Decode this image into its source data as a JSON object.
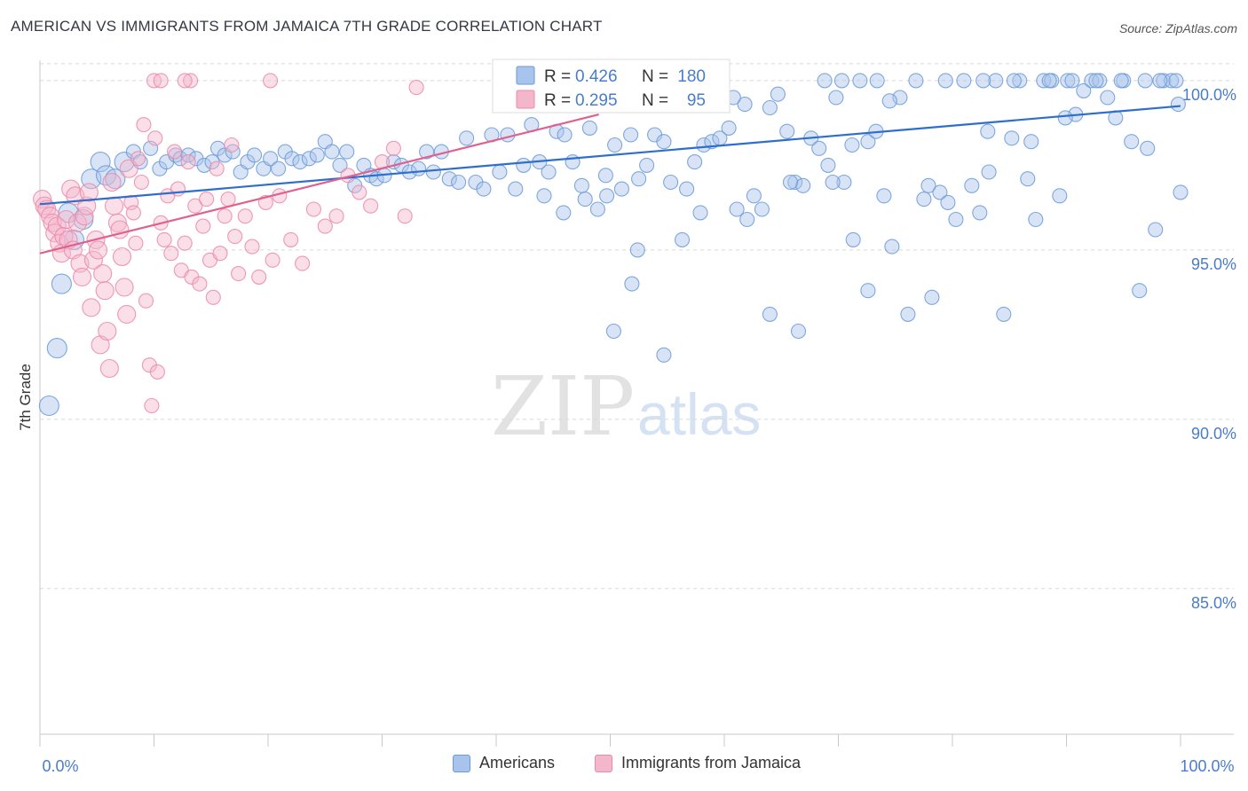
{
  "title": "AMERICAN VS IMMIGRANTS FROM JAMAICA 7TH GRADE CORRELATION CHART",
  "source": "Source: ZipAtlas.com",
  "colors": {
    "americans_fill": "#a8c4ec",
    "americans_stroke": "#6a9ad8",
    "americans_line": "#2f6fcc",
    "jamaica_fill": "#f4b6cb",
    "jamaica_stroke": "#ec88a8",
    "jamaica_line": "#e0608f",
    "axis_value_text": "#4a7ccc"
  },
  "stats_box": [
    {
      "r_label": "R =",
      "r_value": "0.426",
      "n_label": "N =",
      "n_value": "180"
    },
    {
      "r_label": "R =",
      "r_value": "0.295",
      "n_label": "N =",
      "n_value": "95"
    }
  ],
  "watermark": {
    "zip": "ZIP",
    "atlas": "atlas"
  },
  "chart_data": {
    "type": "scatter",
    "ylabel": "7th Grade",
    "xlabel": "",
    "xlim": [
      0,
      100
    ],
    "ylim": [
      80.7,
      100.6
    ],
    "x_tick_labels": [
      "0.0%",
      "100.0%"
    ],
    "y_ticks": [
      {
        "value": 100,
        "label": "100.0%"
      },
      {
        "value": 95,
        "label": "95.0%"
      },
      {
        "value": 90,
        "label": "90.0%"
      },
      {
        "value": 85,
        "label": "85.0%"
      }
    ],
    "grid": "horizontal dashed",
    "legend_position": "bottom-center",
    "series": [
      {
        "name": "Americans",
        "trend": {
          "x": [
            0,
            100
          ],
          "y": [
            96.35,
            99.25
          ]
        },
        "points": [
          [
            0.8,
            90.4
          ],
          [
            1.5,
            92.1
          ],
          [
            1.9,
            94.0
          ],
          [
            2.5,
            96.1
          ],
          [
            3.0,
            95.3
          ],
          [
            3.8,
            95.9
          ],
          [
            4.5,
            97.1
          ],
          [
            5.3,
            97.6
          ],
          [
            5.8,
            97.2
          ],
          [
            6.6,
            97.1
          ],
          [
            7.4,
            97.6
          ],
          [
            8.2,
            97.9
          ],
          [
            8.8,
            97.6
          ],
          [
            9.7,
            98.0
          ],
          [
            10.5,
            97.4
          ],
          [
            11.1,
            97.6
          ],
          [
            11.9,
            97.8
          ],
          [
            12.3,
            97.7
          ],
          [
            13.0,
            97.8
          ],
          [
            13.7,
            97.7
          ],
          [
            14.4,
            97.5
          ],
          [
            15.1,
            97.6
          ],
          [
            15.6,
            98.0
          ],
          [
            16.2,
            97.8
          ],
          [
            16.9,
            97.9
          ],
          [
            17.6,
            97.3
          ],
          [
            18.2,
            97.6
          ],
          [
            18.8,
            97.8
          ],
          [
            19.6,
            97.4
          ],
          [
            20.2,
            97.7
          ],
          [
            20.9,
            97.4
          ],
          [
            21.5,
            97.9
          ],
          [
            22.1,
            97.7
          ],
          [
            22.8,
            97.6
          ],
          [
            23.6,
            97.7
          ],
          [
            24.3,
            97.8
          ],
          [
            25.0,
            98.2
          ],
          [
            25.6,
            97.9
          ],
          [
            26.3,
            97.5
          ],
          [
            26.9,
            97.9
          ],
          [
            27.6,
            96.9
          ],
          [
            28.4,
            97.5
          ],
          [
            29.0,
            97.2
          ],
          [
            29.5,
            97.1
          ],
          [
            30.2,
            97.2
          ],
          [
            31.0,
            97.6
          ],
          [
            31.7,
            97.5
          ],
          [
            32.4,
            97.3
          ],
          [
            33.2,
            97.4
          ],
          [
            33.9,
            97.9
          ],
          [
            34.5,
            97.3
          ],
          [
            35.2,
            97.9
          ],
          [
            35.9,
            97.1
          ],
          [
            36.7,
            97.0
          ],
          [
            37.4,
            98.3
          ],
          [
            38.2,
            97.0
          ],
          [
            38.9,
            96.8
          ],
          [
            39.6,
            98.4
          ],
          [
            40.3,
            97.3
          ],
          [
            41.0,
            98.4
          ],
          [
            41.7,
            96.8
          ],
          [
            42.4,
            97.5
          ],
          [
            43.1,
            98.7
          ],
          [
            43.8,
            97.6
          ],
          [
            44.6,
            97.3
          ],
          [
            45.3,
            98.5
          ],
          [
            46.0,
            98.4
          ],
          [
            46.7,
            97.6
          ],
          [
            47.5,
            96.9
          ],
          [
            48.2,
            98.6
          ],
          [
            48.9,
            96.2
          ],
          [
            49.7,
            96.6
          ],
          [
            50.4,
            98.1
          ],
          [
            51.0,
            96.8
          ],
          [
            51.8,
            98.4
          ],
          [
            52.5,
            97.1
          ],
          [
            53.2,
            97.5
          ],
          [
            53.9,
            98.4
          ],
          [
            54.7,
            98.2
          ],
          [
            55.3,
            97.0
          ],
          [
            56.0,
            99.5
          ],
          [
            56.7,
            96.8
          ],
          [
            57.4,
            97.6
          ],
          [
            58.2,
            98.1
          ],
          [
            58.9,
            98.2
          ],
          [
            59.6,
            98.3
          ],
          [
            60.4,
            98.6
          ],
          [
            61.1,
            96.2
          ],
          [
            61.8,
            99.3
          ],
          [
            62.6,
            96.6
          ],
          [
            63.3,
            96.2
          ],
          [
            64.0,
            99.2
          ],
          [
            64.7,
            99.6
          ],
          [
            65.5,
            98.5
          ],
          [
            66.2,
            97.0
          ],
          [
            66.9,
            96.9
          ],
          [
            67.6,
            98.3
          ],
          [
            68.3,
            98.0
          ],
          [
            69.1,
            97.5
          ],
          [
            69.8,
            99.5
          ],
          [
            70.5,
            97.0
          ],
          [
            71.2,
            98.1
          ],
          [
            71.9,
            100.0
          ],
          [
            72.6,
            98.2
          ],
          [
            73.3,
            98.5
          ],
          [
            74.0,
            96.6
          ],
          [
            74.7,
            95.1
          ],
          [
            75.4,
            99.5
          ],
          [
            76.1,
            93.1
          ],
          [
            76.8,
            100.0
          ],
          [
            77.5,
            96.5
          ],
          [
            78.2,
            93.6
          ],
          [
            78.9,
            96.7
          ],
          [
            79.6,
            96.4
          ],
          [
            80.3,
            95.9
          ],
          [
            81.0,
            100.0
          ],
          [
            81.7,
            96.9
          ],
          [
            82.4,
            96.1
          ],
          [
            83.1,
            98.5
          ],
          [
            83.8,
            100.0
          ],
          [
            84.5,
            93.1
          ],
          [
            85.2,
            98.3
          ],
          [
            85.9,
            100.0
          ],
          [
            86.6,
            97.1
          ],
          [
            87.3,
            95.9
          ],
          [
            88.0,
            100.0
          ],
          [
            88.7,
            100.0
          ],
          [
            89.4,
            96.6
          ],
          [
            90.1,
            100.0
          ],
          [
            90.8,
            99.0
          ],
          [
            91.5,
            99.7
          ],
          [
            92.2,
            100.0
          ],
          [
            92.9,
            100.0
          ],
          [
            93.6,
            99.5
          ],
          [
            94.3,
            98.9
          ],
          [
            95.0,
            100.0
          ],
          [
            95.7,
            98.2
          ],
          [
            96.4,
            93.8
          ],
          [
            97.1,
            98.0
          ],
          [
            97.8,
            95.6
          ],
          [
            98.5,
            100.0
          ],
          [
            99.2,
            100.0
          ],
          [
            99.8,
            99.3
          ],
          [
            100.0,
            96.7
          ],
          [
            64.0,
            93.1
          ],
          [
            65.8,
            97.0
          ],
          [
            60.8,
            99.5
          ],
          [
            66.5,
            92.6
          ],
          [
            71.3,
            95.3
          ],
          [
            72.6,
            93.8
          ],
          [
            52.4,
            95.0
          ],
          [
            51.9,
            94.0
          ],
          [
            50.3,
            92.6
          ],
          [
            54.7,
            91.9
          ],
          [
            47.8,
            96.5
          ],
          [
            45.9,
            96.1
          ],
          [
            44.2,
            96.6
          ],
          [
            49.6,
            97.2
          ],
          [
            56.3,
            95.3
          ],
          [
            57.9,
            96.1
          ],
          [
            62.0,
            95.9
          ],
          [
            69.5,
            97.0
          ],
          [
            77.9,
            96.9
          ],
          [
            83.2,
            97.3
          ],
          [
            86.9,
            98.2
          ],
          [
            89.9,
            98.9
          ],
          [
            92.6,
            100.0
          ],
          [
            94.8,
            100.0
          ],
          [
            96.9,
            100.0
          ],
          [
            98.2,
            100.0
          ],
          [
            99.6,
            100.0
          ],
          [
            82.7,
            100.0
          ],
          [
            74.5,
            99.4
          ],
          [
            68.8,
            100.0
          ],
          [
            88.5,
            100.0
          ],
          [
            85.4,
            100.0
          ],
          [
            79.4,
            100.0
          ],
          [
            73.4,
            100.0
          ],
          [
            70.3,
            100.0
          ],
          [
            90.5,
            100.0
          ]
        ]
      },
      {
        "name": "Immigrants from Jamaica",
        "trend": {
          "x": [
            0,
            49
          ],
          "y": [
            94.9,
            99.0
          ]
        },
        "points": [
          [
            0.2,
            96.5
          ],
          [
            0.4,
            96.3
          ],
          [
            0.6,
            96.2
          ],
          [
            0.9,
            96.0
          ],
          [
            1.1,
            95.8
          ],
          [
            1.3,
            95.5
          ],
          [
            1.5,
            95.7
          ],
          [
            1.7,
            95.2
          ],
          [
            1.9,
            94.9
          ],
          [
            2.1,
            95.4
          ],
          [
            2.3,
            95.9
          ],
          [
            2.5,
            95.3
          ],
          [
            2.7,
            96.8
          ],
          [
            2.9,
            95.0
          ],
          [
            3.1,
            96.6
          ],
          [
            3.3,
            95.8
          ],
          [
            3.5,
            94.6
          ],
          [
            3.7,
            94.2
          ],
          [
            3.9,
            96.0
          ],
          [
            4.1,
            96.3
          ],
          [
            4.3,
            96.7
          ],
          [
            4.5,
            93.3
          ],
          [
            4.7,
            94.7
          ],
          [
            4.9,
            95.3
          ],
          [
            5.1,
            95.0
          ],
          [
            5.3,
            92.2
          ],
          [
            5.5,
            94.3
          ],
          [
            5.7,
            93.8
          ],
          [
            5.9,
            92.6
          ],
          [
            6.1,
            91.5
          ],
          [
            6.3,
            97.0
          ],
          [
            6.5,
            96.3
          ],
          [
            6.8,
            95.8
          ],
          [
            7.0,
            95.6
          ],
          [
            7.2,
            94.8
          ],
          [
            7.4,
            93.9
          ],
          [
            7.6,
            93.1
          ],
          [
            7.8,
            97.4
          ],
          [
            8.0,
            96.4
          ],
          [
            8.2,
            96.1
          ],
          [
            8.4,
            95.2
          ],
          [
            8.6,
            97.7
          ],
          [
            8.9,
            97.0
          ],
          [
            9.1,
            98.7
          ],
          [
            9.3,
            93.5
          ],
          [
            9.6,
            91.6
          ],
          [
            9.8,
            90.4
          ],
          [
            10.1,
            98.3
          ],
          [
            10.3,
            91.4
          ],
          [
            10.6,
            95.8
          ],
          [
            10.9,
            95.3
          ],
          [
            11.2,
            96.6
          ],
          [
            11.5,
            94.9
          ],
          [
            11.8,
            97.9
          ],
          [
            12.1,
            96.8
          ],
          [
            12.4,
            94.4
          ],
          [
            12.7,
            95.2
          ],
          [
            13.0,
            97.6
          ],
          [
            13.3,
            94.2
          ],
          [
            13.6,
            96.3
          ],
          [
            14.0,
            94.0
          ],
          [
            14.3,
            95.7
          ],
          [
            14.6,
            96.5
          ],
          [
            14.9,
            94.7
          ],
          [
            15.2,
            93.6
          ],
          [
            15.5,
            97.4
          ],
          [
            15.8,
            94.9
          ],
          [
            16.2,
            96.0
          ],
          [
            16.5,
            96.5
          ],
          [
            16.8,
            98.1
          ],
          [
            17.1,
            95.4
          ],
          [
            17.4,
            94.3
          ],
          [
            18.0,
            96.0
          ],
          [
            18.6,
            95.1
          ],
          [
            19.2,
            94.2
          ],
          [
            19.8,
            96.4
          ],
          [
            20.4,
            94.7
          ],
          [
            21.0,
            96.6
          ],
          [
            22.0,
            95.3
          ],
          [
            23.0,
            94.6
          ],
          [
            24.0,
            96.2
          ],
          [
            25.0,
            95.7
          ],
          [
            26.0,
            96.0
          ],
          [
            27.0,
            97.2
          ],
          [
            28.0,
            96.7
          ],
          [
            29.0,
            96.3
          ],
          [
            30.0,
            97.6
          ],
          [
            31.0,
            98.0
          ],
          [
            32.0,
            96.0
          ],
          [
            33.0,
            99.8
          ],
          [
            13.2,
            100.0
          ],
          [
            10.0,
            100.0
          ],
          [
            10.6,
            100.0
          ],
          [
            12.7,
            100.0
          ],
          [
            20.2,
            100.0
          ]
        ]
      }
    ]
  },
  "legend": [
    {
      "label": "Americans"
    },
    {
      "label": "Immigrants from Jamaica"
    }
  ]
}
